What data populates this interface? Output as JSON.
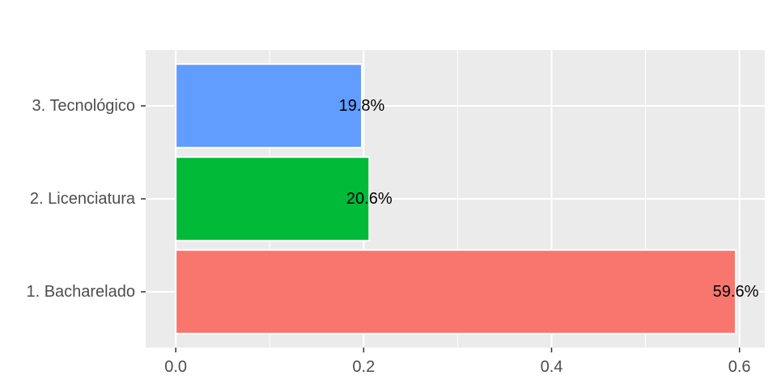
{
  "chart_data": {
    "type": "bar",
    "orientation": "horizontal",
    "categories": [
      "1. Bacharelado",
      "2. Licenciatura",
      "3. Tecnológico"
    ],
    "values": [
      0.596,
      0.206,
      0.198
    ],
    "data_labels": [
      "59.6%",
      "20.6%",
      "19.8%"
    ],
    "colors": [
      "#F8766D",
      "#00BA38",
      "#619CFF"
    ],
    "xlim": [
      -0.032,
      0.627
    ],
    "x_ticks": [
      0.0,
      0.2,
      0.4,
      0.6
    ],
    "x_tick_labels": [
      "0.0",
      "0.2",
      "0.4",
      "0.6"
    ],
    "grid": true,
    "legend": "none",
    "panel_background": "#EBEBEB"
  }
}
